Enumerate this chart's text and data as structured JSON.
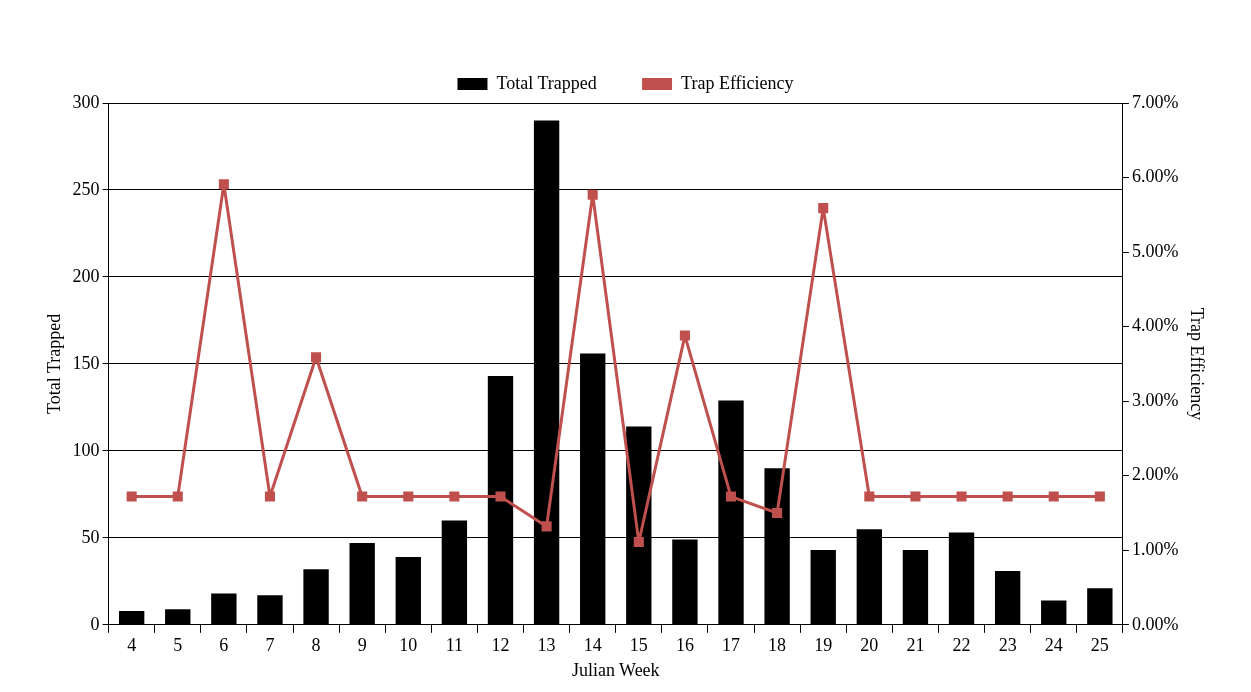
{
  "chart_data": {
    "type": "bar",
    "xlabel": "Julian Week",
    "ylabel": "Total Trapped",
    "y2label": "Trap Efficiency",
    "categories": [
      "4",
      "5",
      "6",
      "7",
      "8",
      "9",
      "10",
      "11",
      "12",
      "13",
      "14",
      "15",
      "16",
      "17",
      "18",
      "19",
      "20",
      "21",
      "22",
      "23",
      "24",
      "25"
    ],
    "series": [
      {
        "name": "Total Trapped",
        "color": "#000000",
        "values": [
          8,
          9,
          18,
          17,
          32,
          47,
          39,
          60,
          143,
          290,
          156,
          114,
          49,
          129,
          90,
          43,
          55,
          43,
          53,
          31,
          14,
          21
        ]
      },
      {
        "name": "Trap Efficiency",
        "type": "line",
        "axis": "y2",
        "color": "#c0504d",
        "marker": "square",
        "line_style": "solid",
        "values": [
          1.72,
          1.72,
          5.91,
          1.72,
          3.59,
          1.72,
          1.72,
          1.72,
          1.72,
          1.32,
          5.77,
          1.11,
          3.88,
          1.72,
          1.5,
          5.59,
          1.72,
          1.72,
          1.72,
          1.72,
          1.72,
          1.72
        ]
      }
    ],
    "ylim": [
      0,
      300
    ],
    "yticks": [
      0,
      50,
      100,
      150,
      200,
      250,
      300
    ],
    "y2lim": [
      0,
      7
    ],
    "y2ticks": [
      {
        "value": 0,
        "label": "0.00%"
      },
      {
        "value": 1,
        "label": "1.00%"
      },
      {
        "value": 2,
        "label": "2.00%"
      },
      {
        "value": 3,
        "label": "3.00%"
      },
      {
        "value": 4,
        "label": "4.00%"
      },
      {
        "value": 5,
        "label": "5.00%"
      },
      {
        "value": 6,
        "label": "6.00%"
      },
      {
        "value": 7,
        "label": "7.00%"
      }
    ],
    "grid": "y",
    "legend": "top"
  }
}
